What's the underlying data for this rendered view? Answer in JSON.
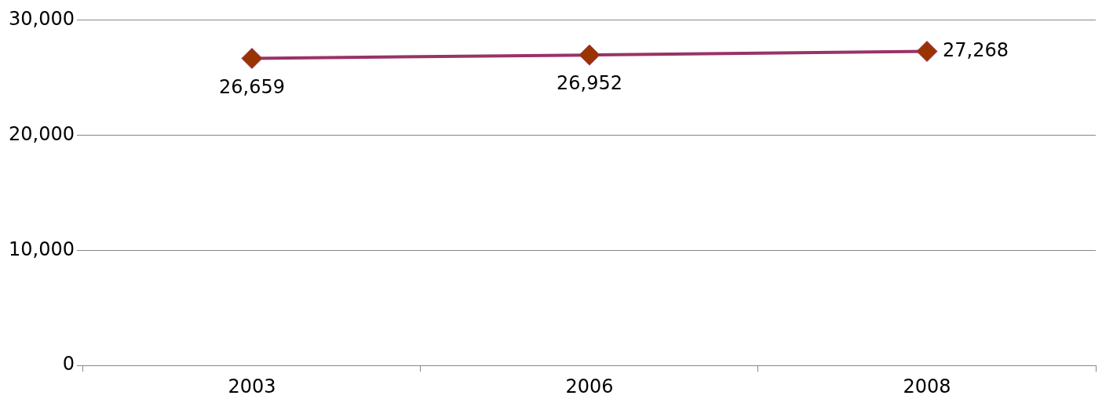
{
  "chart_data": {
    "type": "line",
    "categories": [
      "2003",
      "2006",
      "2008"
    ],
    "series": [
      {
        "color": "#993366",
        "colors": [
          "#993300",
          "#993300",
          "#993300"
        ],
        "values": [
          26659,
          26952,
          27268
        ],
        "value_labels": [
          "26,659",
          "26,952",
          "27,268"
        ]
      }
    ],
    "marker": "diamond",
    "ylim": [
      0,
      30000
    ],
    "yticks": [
      {
        "value": 0,
        "label": "0"
      },
      {
        "value": 10000,
        "label": "10,000"
      },
      {
        "value": 20000,
        "label": "20,000"
      },
      {
        "value": 30000,
        "label": "30,000"
      }
    ],
    "grid": "y",
    "legend": false
  }
}
